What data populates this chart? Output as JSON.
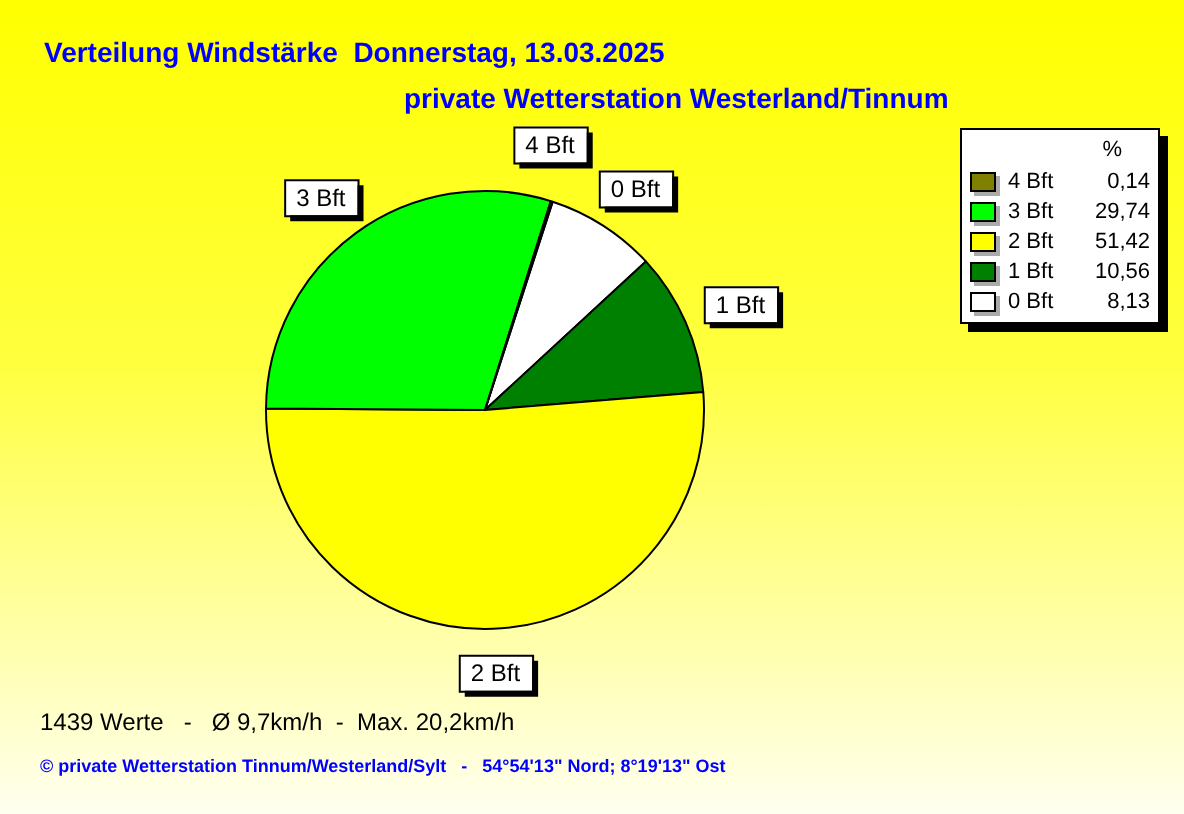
{
  "chart_data": {
    "type": "pie",
    "title": "Verteilung Windstärke  Donnerstag, 13.03.2025",
    "subtitle": "private Wetterstation Westerland/Tinnum",
    "legend_title": "%",
    "categories": [
      "4 Bft",
      "3 Bft",
      "2 Bft",
      "1 Bft",
      "0 Bft"
    ],
    "values": [
      0.14,
      29.74,
      51.42,
      10.56,
      8.13
    ],
    "colors": [
      "#808000",
      "#00ff00",
      "#ffff00",
      "#008000",
      "#ffffff"
    ],
    "value_labels": [
      "0,14",
      "29,74",
      "51,42",
      "10,56",
      "8,13"
    ],
    "legend": "top right",
    "annotations": [
      "1439 Werte   -   Ø 9,7km/h  -  Max. 20,2km/h",
      "© private Wetterstation Tinnum/Westerland/Sylt   -   54°54'13\" Nord; 8°19'13\" Ost"
    ]
  }
}
